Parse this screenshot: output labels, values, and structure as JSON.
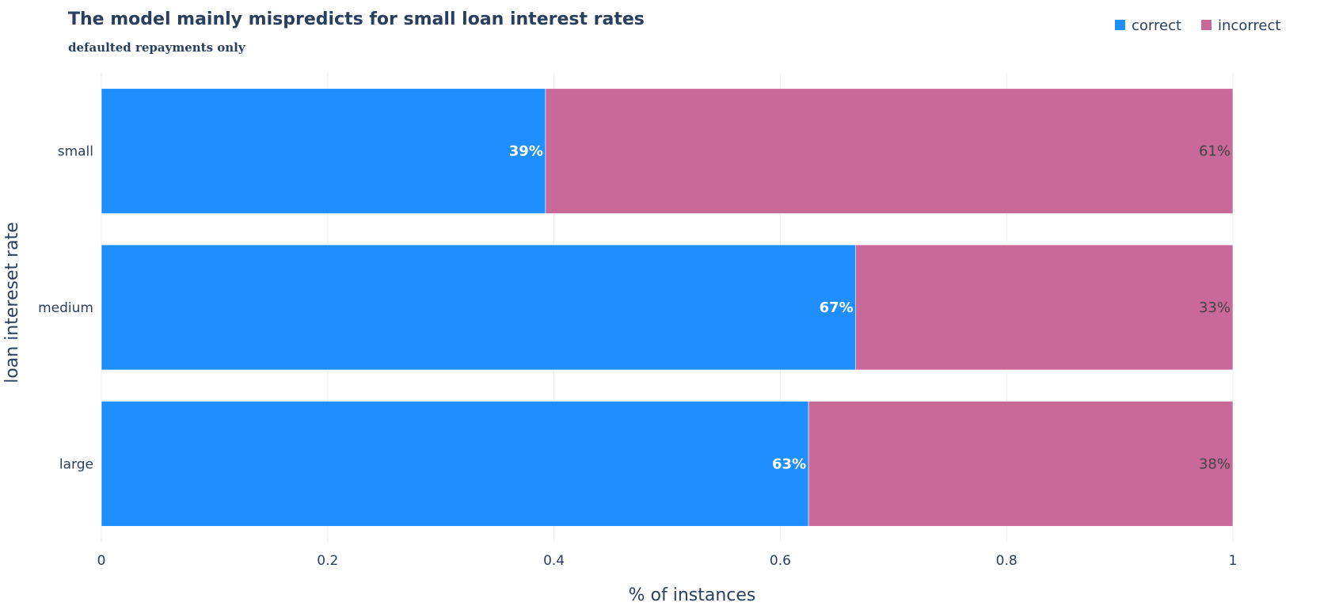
{
  "chart_data": {
    "type": "bar",
    "orientation": "horizontal",
    "barmode": "stack",
    "title": "The model mainly mispredicts for small loan interest rates",
    "subtitle": "defaulted repayments only",
    "xlabel": "% of instances",
    "ylabel": "loan intereset rate",
    "xlim": [
      0,
      1
    ],
    "x_ticks": [
      0,
      0.2,
      0.4,
      0.6,
      0.8,
      1
    ],
    "x_tick_labels": [
      "0",
      "0.2",
      "0.4",
      "0.6",
      "0.8",
      "1"
    ],
    "categories": [
      "small",
      "medium",
      "large"
    ],
    "series": [
      {
        "name": "correct",
        "color": "#1f8fff",
        "values": [
          0.3925,
          0.6667,
          0.625
        ],
        "labels": [
          "39%",
          "67%",
          "63%"
        ]
      },
      {
        "name": "incorrect",
        "color": "#c8699a",
        "values": [
          0.6075,
          0.3333,
          0.375
        ],
        "labels": [
          "61%",
          "33%",
          "38%"
        ]
      }
    ],
    "legend_position": "top-right",
    "grid": true
  }
}
